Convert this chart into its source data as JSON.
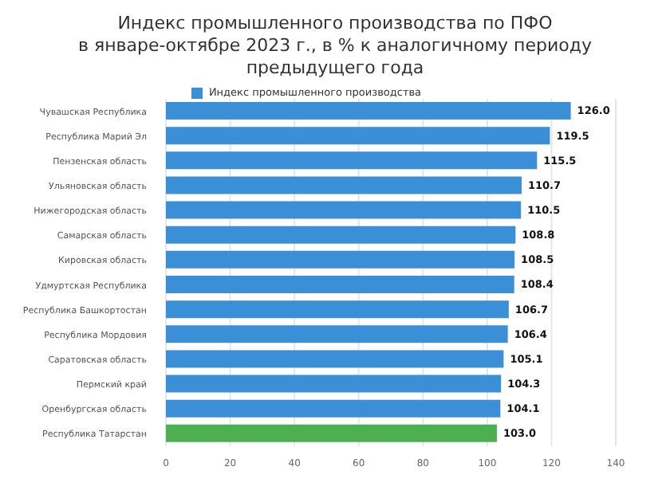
{
  "chart_data": {
    "type": "bar",
    "orientation": "horizontal",
    "title": "Индекс промышленного производства по ПФО\nв январе-октябре 2023 г., в % к аналогичному периоду\nпредыдущего года",
    "categories": [
      "Чувашская Республика",
      "Республика Марий Эл",
      "Пензенская область",
      "Ульяновская область",
      "Нижегородская область",
      "Самарская область",
      "Кировская область",
      "Удмуртская Республика",
      "Республика Башкортостан",
      "Республика Мордовия",
      "Саратовская область",
      "Пермский край",
      "Оренбургская область",
      "Республика Татарстан"
    ],
    "series": [
      {
        "name": "Индекс промышленного производства",
        "color": "#3a8fd6",
        "values": [
          126.0,
          119.5,
          115.5,
          110.7,
          110.5,
          108.8,
          108.5,
          108.4,
          106.7,
          106.4,
          105.1,
          104.3,
          104.1,
          103.0
        ],
        "value_labels": [
          "126.0",
          "119.5",
          "115.5",
          "110.7",
          "110.5",
          "108.8",
          "108.5",
          "108.4",
          "106.7",
          "106.4",
          "105.1",
          "104.3",
          "104.1",
          "103.0"
        ],
        "colors": [
          "#3a8fd6",
          "#3a8fd6",
          "#3a8fd6",
          "#3a8fd6",
          "#3a8fd6",
          "#3a8fd6",
          "#3a8fd6",
          "#3a8fd6",
          "#3a8fd6",
          "#3a8fd6",
          "#3a8fd6",
          "#3a8fd6",
          "#3a8fd6",
          "#4caf50"
        ]
      }
    ],
    "xlim": [
      0,
      140
    ],
    "xticks": [
      0,
      20,
      40,
      60,
      80,
      100,
      120,
      140
    ],
    "grid": "x",
    "legend": "top"
  }
}
